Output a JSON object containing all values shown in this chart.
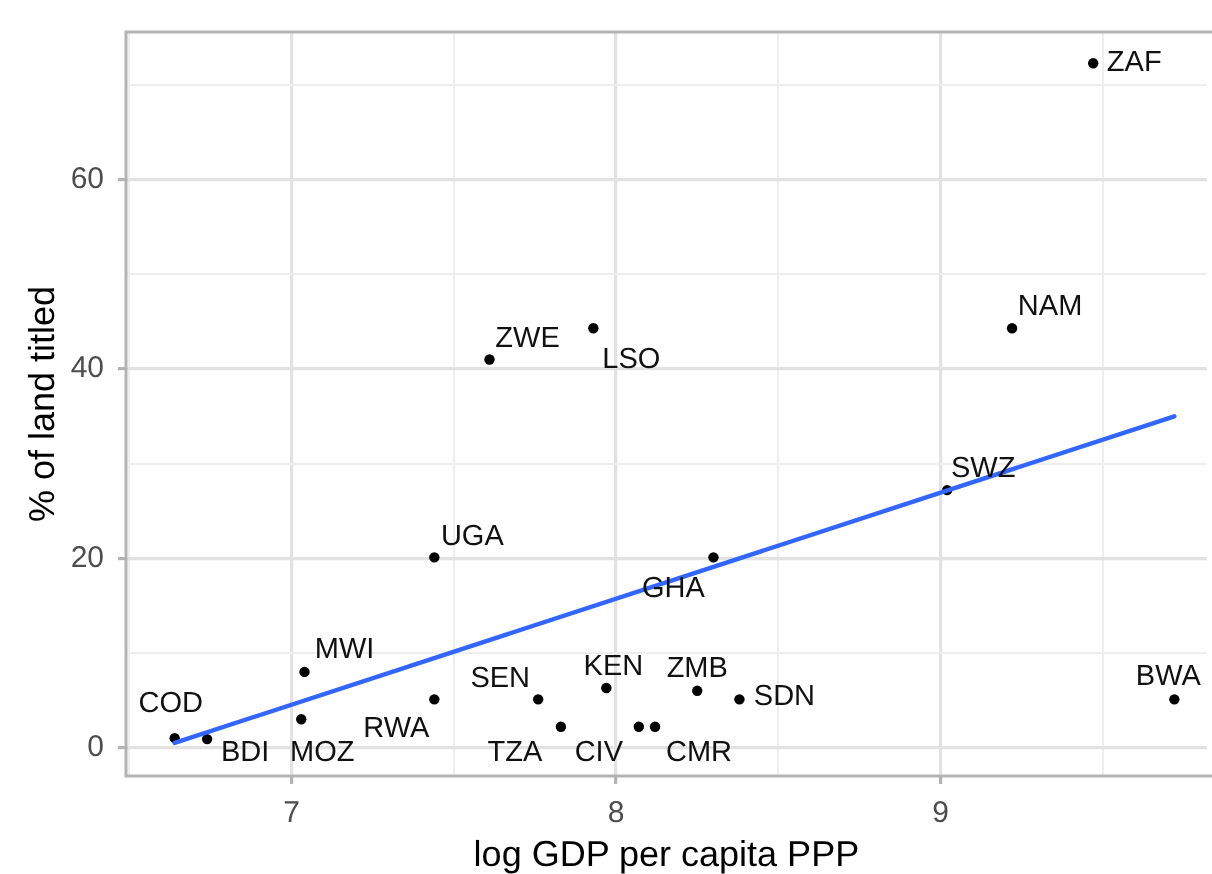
{
  "chart_data": {
    "type": "scatter",
    "xlabel": "log GDP per capita PPP",
    "ylabel": "% of land titled",
    "xlim": [
      6.49,
      9.82
    ],
    "ylim": [
      -3,
      75.6
    ],
    "xticks": [
      {
        "value": 6.5,
        "label": null
      },
      7,
      {
        "value": 7.5,
        "label": null
      },
      8,
      {
        "value": 8.5,
        "label": null
      },
      9,
      {
        "value": 9.5,
        "label": null
      }
    ],
    "yticks": [
      0,
      {
        "value": 10,
        "label": null
      },
      20,
      {
        "value": 30,
        "label": null
      },
      40,
      {
        "value": 50,
        "label": null
      },
      60,
      {
        "value": 70,
        "label": null
      }
    ],
    "grid": true,
    "series": [
      {
        "color": "#000000",
        "x": [
          9.47,
          9.22,
          7.93,
          7.61,
          7.44,
          7.04,
          6.64,
          6.74,
          7.03,
          7.44,
          7.76,
          7.83,
          7.97,
          8.07,
          8.12,
          8.25,
          8.38,
          8.3,
          9.02,
          9.72
        ],
        "values": [
          72.3,
          44.3,
          44.3,
          41.0,
          20.1,
          8.0,
          1.0,
          0.9,
          3.0,
          5.1,
          5.1,
          2.2,
          6.3,
          2.2,
          2.2,
          6.0,
          5.1,
          20.1,
          27.2,
          5.1
        ]
      },
      {
        "type": "line",
        "color": "#3366ff",
        "x": [
          6.64,
          9.72
        ],
        "values": [
          0.5,
          35.0
        ]
      }
    ],
    "annotations": [
      {
        "text": "ZAF",
        "x": 9.47,
        "y": 72.3
      },
      {
        "text": "NAM",
        "x": 9.22,
        "y": 44.3
      },
      {
        "text": "LSO",
        "x": 7.93,
        "y": 44.3
      },
      {
        "text": "ZWE",
        "x": 7.61,
        "y": 41.0
      },
      {
        "text": "UGA",
        "x": 7.44,
        "y": 20.1
      },
      {
        "text": "MWI",
        "x": 7.04,
        "y": 8.0
      },
      {
        "text": "COD",
        "x": 6.64,
        "y": 1.0
      },
      {
        "text": "BDI",
        "x": 6.74,
        "y": 0.9
      },
      {
        "text": "MOZ",
        "x": 7.03,
        "y": 3.0
      },
      {
        "text": "RWA",
        "x": 7.44,
        "y": 5.1
      },
      {
        "text": "SEN",
        "x": 7.76,
        "y": 5.1
      },
      {
        "text": "TZA",
        "x": 7.83,
        "y": 2.2
      },
      {
        "text": "KEN",
        "x": 7.97,
        "y": 6.3
      },
      {
        "text": "CIV",
        "x": 8.07,
        "y": 2.2
      },
      {
        "text": "CMR",
        "x": 8.12,
        "y": 2.2
      },
      {
        "text": "ZMB",
        "x": 8.25,
        "y": 6.0
      },
      {
        "text": "SDN",
        "x": 8.38,
        "y": 5.1
      },
      {
        "text": "GHA",
        "x": 8.3,
        "y": 20.1
      },
      {
        "text": "SWZ",
        "x": 9.02,
        "y": 27.2
      },
      {
        "text": "BWA",
        "x": 9.72,
        "y": 5.1
      }
    ]
  }
}
